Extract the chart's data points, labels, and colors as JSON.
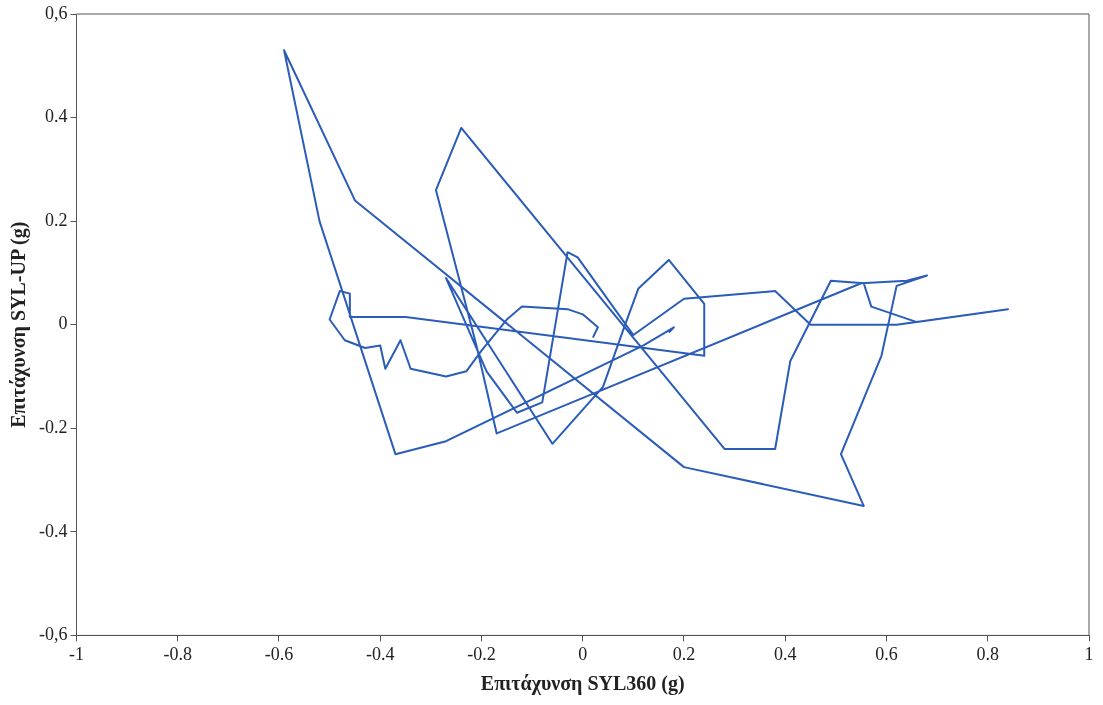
{
  "chart_data": {
    "type": "line",
    "xlabel": "Επιτάχυνση SYL360 (g)",
    "ylabel": "Επιτάχυνση SYL-UP (g)",
    "xlim": [
      -1,
      1
    ],
    "ylim": [
      -0.6,
      0.6
    ],
    "xticks": [
      -1,
      -0.8,
      -0.6,
      -0.4,
      -0.2,
      0,
      0.2,
      0.4,
      0.6,
      0.8,
      1
    ],
    "yticks": [
      {
        "value": -0.6,
        "label": "-0,6"
      },
      -0.4,
      -0.2,
      0,
      0.2,
      0.4,
      {
        "value": 0.6,
        "label": "0,6"
      }
    ],
    "grid": false,
    "legend": false,
    "marker": "none",
    "line_style": "solid",
    "series": [
      {
        "color": "#2a5cb8",
        "x": [
          0.02,
          0.03,
          0.0,
          -0.03,
          -0.12,
          -0.15,
          -0.2,
          -0.23,
          -0.27,
          -0.34,
          -0.36,
          -0.39,
          -0.4,
          -0.43,
          -0.47,
          -0.5,
          -0.48,
          -0.46,
          -0.46,
          -0.35,
          0.24,
          0.24,
          0.17,
          0.11,
          0.08,
          0.04,
          -0.06,
          -0.27,
          -0.19,
          -0.13,
          -0.08,
          -0.03,
          -0.01,
          0.1,
          0.2,
          0.38,
          0.45,
          0.62,
          0.84,
          0.66,
          0.57,
          0.555,
          0.49,
          0.41,
          0.38,
          0.28,
          -0.24,
          -0.29,
          -0.21,
          -0.17,
          0.55,
          0.64,
          0.68,
          0.62,
          0.59,
          0.51,
          0.555,
          0.2,
          -0.45,
          -0.59,
          -0.52,
          -0.37,
          -0.27,
          0.12,
          0.18,
          0.17
        ],
        "values": [
          -0.025,
          -0.005,
          0.02,
          0.03,
          0.035,
          0.01,
          -0.05,
          -0.09,
          -0.1,
          -0.085,
          -0.03,
          -0.085,
          -0.04,
          -0.045,
          -0.03,
          0.01,
          0.065,
          0.06,
          0.015,
          0.015,
          -0.06,
          0.04,
          0.125,
          0.07,
          -0.01,
          -0.12,
          -0.23,
          0.09,
          -0.09,
          -0.17,
          -0.15,
          0.14,
          0.13,
          -0.02,
          0.05,
          0.065,
          0.0,
          0.0,
          0.03,
          0.005,
          0.035,
          0.08,
          0.085,
          -0.07,
          -0.24,
          -0.24,
          0.38,
          0.26,
          -0.04,
          -0.21,
          0.08,
          0.085,
          0.095,
          0.075,
          -0.06,
          -0.25,
          -0.35,
          -0.275,
          0.24,
          0.53,
          0.2,
          -0.25,
          -0.225,
          -0.04,
          -0.005,
          -0.015
        ]
      }
    ]
  }
}
